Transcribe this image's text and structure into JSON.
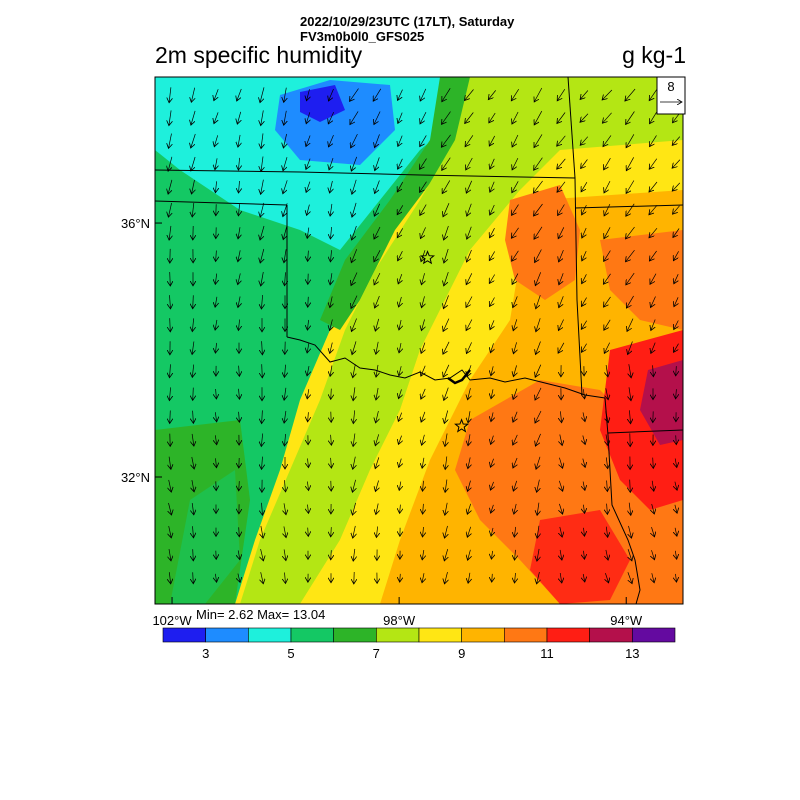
{
  "header": {
    "datetime": "2022/10/29/23UTC (17LT), Saturday",
    "model": "FV3m0b0l0_GFS025"
  },
  "title": {
    "left": "2m specific humidity",
    "right": "g kg-1"
  },
  "map": {
    "lon_range": [
      -102.3,
      -93.0
    ],
    "lat_range": [
      30.0,
      38.3
    ],
    "lat_ticks": [
      {
        "value": 36,
        "label": "36°N"
      },
      {
        "value": 32,
        "label": "32°N"
      }
    ],
    "lon_ticks": [
      {
        "value": -102,
        "label": "102°W"
      },
      {
        "value": -98,
        "label": "98°W"
      },
      {
        "value": -94,
        "label": "94°W"
      }
    ],
    "stars": [
      {
        "lon": -97.5,
        "lat": 35.45
      },
      {
        "lon": -96.9,
        "lat": 32.8
      }
    ],
    "wind_direction": "north-northeasterly",
    "reference_vector": {
      "label": "8"
    }
  },
  "stats": {
    "text": "Min= 2.62 Max= 13.04",
    "min": 2.62,
    "max": 13.04
  },
  "colorbar": {
    "colors": [
      "#1e1ef0",
      "#1e8cff",
      "#1ef0dc",
      "#14c864",
      "#2db428",
      "#b4e614",
      "#ffe614",
      "#ffb400",
      "#ff7814",
      "#ff1e14",
      "#b4104b",
      "#640aa0"
    ],
    "labels": [
      {
        "value": 3,
        "label": "3"
      },
      {
        "value": 5,
        "label": "5"
      },
      {
        "value": 7,
        "label": "7"
      },
      {
        "value": 9,
        "label": "9"
      },
      {
        "value": 11,
        "label": "11"
      },
      {
        "value": 13,
        "label": "13"
      }
    ],
    "range": [
      2,
      14
    ]
  }
}
